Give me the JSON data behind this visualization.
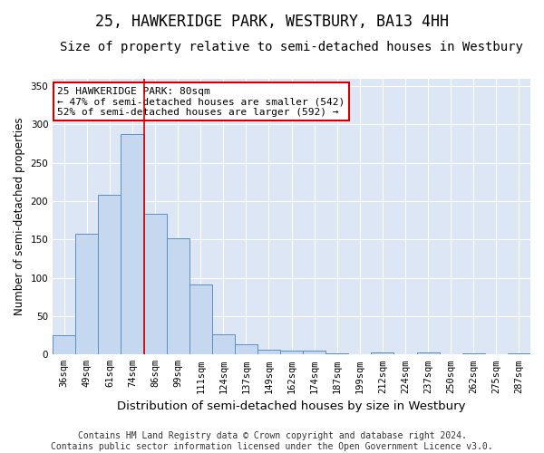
{
  "title": "25, HAWKERIDGE PARK, WESTBURY, BA13 4HH",
  "subtitle": "Size of property relative to semi-detached houses in Westbury",
  "xlabel": "Distribution of semi-detached houses by size in Westbury",
  "ylabel": "Number of semi-detached properties",
  "categories": [
    "36sqm",
    "49sqm",
    "61sqm",
    "74sqm",
    "86sqm",
    "99sqm",
    "111sqm",
    "124sqm",
    "137sqm",
    "149sqm",
    "162sqm",
    "174sqm",
    "187sqm",
    "199sqm",
    "212sqm",
    "224sqm",
    "237sqm",
    "250sqm",
    "262sqm",
    "275sqm",
    "287sqm"
  ],
  "values": [
    25,
    157,
    208,
    288,
    183,
    152,
    91,
    26,
    13,
    6,
    5,
    5,
    1,
    0,
    3,
    0,
    3,
    0,
    1,
    0,
    2
  ],
  "bar_color": "#c5d8f0",
  "bar_edge_color": "#5b8ec4",
  "property_bin_index": 3,
  "annotation_text": "25 HAWKERIDGE PARK: 80sqm\n← 47% of semi-detached houses are smaller (542)\n52% of semi-detached houses are larger (592) →",
  "annotation_box_color": "#ffffff",
  "annotation_box_edge_color": "#cc0000",
  "vline_color": "#cc0000",
  "footer_line1": "Contains HM Land Registry data © Crown copyright and database right 2024.",
  "footer_line2": "Contains public sector information licensed under the Open Government Licence v3.0.",
  "ylim": [
    0,
    360
  ],
  "bg_color": "#ffffff",
  "plot_bg_color": "#dce6f5",
  "grid_color": "#ffffff",
  "title_fontsize": 12,
  "subtitle_fontsize": 10,
  "xlabel_fontsize": 9.5,
  "ylabel_fontsize": 8.5,
  "tick_fontsize": 7.5,
  "footer_fontsize": 7,
  "yticks": [
    0,
    50,
    100,
    150,
    200,
    250,
    300,
    350
  ]
}
